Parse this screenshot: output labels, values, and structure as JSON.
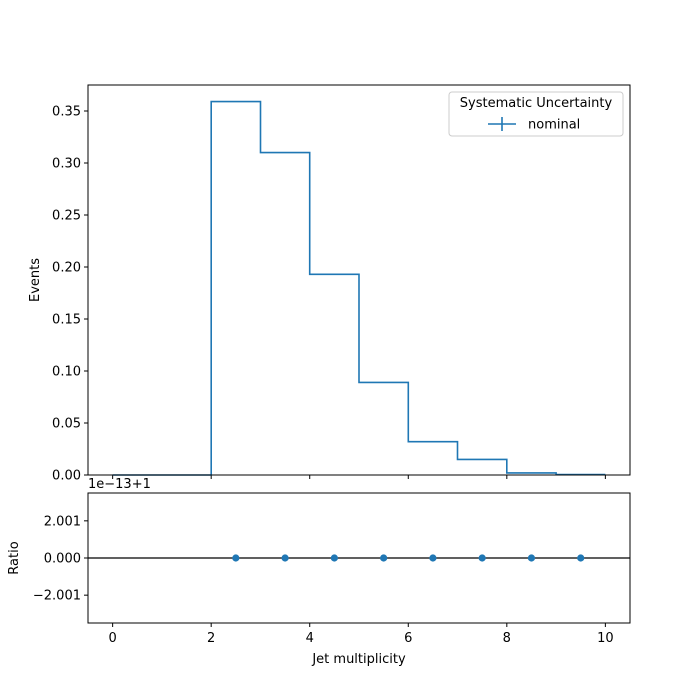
{
  "colors": {
    "series": "#1f77b4",
    "axis": "#000000",
    "background": "#ffffff",
    "reference_line": "#000000"
  },
  "chart_data": [
    {
      "type": "step",
      "panel": "main",
      "title": "",
      "xlabel": "",
      "ylabel": "Events",
      "xlim": [
        -0.5,
        10.5
      ],
      "ylim": [
        0,
        0.375
      ],
      "bin_edges": [
        0,
        1,
        2,
        3,
        4,
        5,
        6,
        7,
        8,
        9,
        10
      ],
      "values": [
        0.0,
        0.0,
        0.359,
        0.31,
        0.193,
        0.089,
        0.032,
        0.015,
        0.002,
        0.0005
      ],
      "x_ticks": [
        0,
        2,
        4,
        6,
        8,
        10
      ],
      "y_ticks": [
        0.0,
        0.05,
        0.1,
        0.15,
        0.2,
        0.25,
        0.3,
        0.35
      ],
      "y_tick_labels": [
        "0.00",
        "0.05",
        "0.10",
        "0.15",
        "0.20",
        "0.25",
        "0.30",
        "0.35"
      ],
      "legend": {
        "title": "Systematic Uncertainty",
        "entries": [
          "nominal"
        ],
        "position": "top-right"
      },
      "grid": false
    },
    {
      "type": "scatter",
      "panel": "ratio",
      "title": "",
      "xlabel": "Jet multiplicity",
      "ylabel": "Ratio",
      "offset_text": "1e−13+1",
      "xlim": [
        -0.5,
        10.5
      ],
      "ylim": [
        -3.5,
        3.5
      ],
      "x": [
        2.5,
        3.5,
        4.5,
        5.5,
        6.5,
        7.5,
        8.5,
        9.5
      ],
      "y": [
        0,
        0,
        0,
        0,
        0,
        0,
        0,
        0
      ],
      "reference_y": 0,
      "x_ticks": [
        0,
        2,
        4,
        6,
        8,
        10
      ],
      "x_tick_labels": [
        "0",
        "2",
        "4",
        "6",
        "8",
        "10"
      ],
      "y_ticks": [
        2.001,
        0,
        -2.001
      ],
      "y_tick_labels": [
        "2.001",
        "0.000",
        "−2.001"
      ],
      "grid": false
    }
  ]
}
